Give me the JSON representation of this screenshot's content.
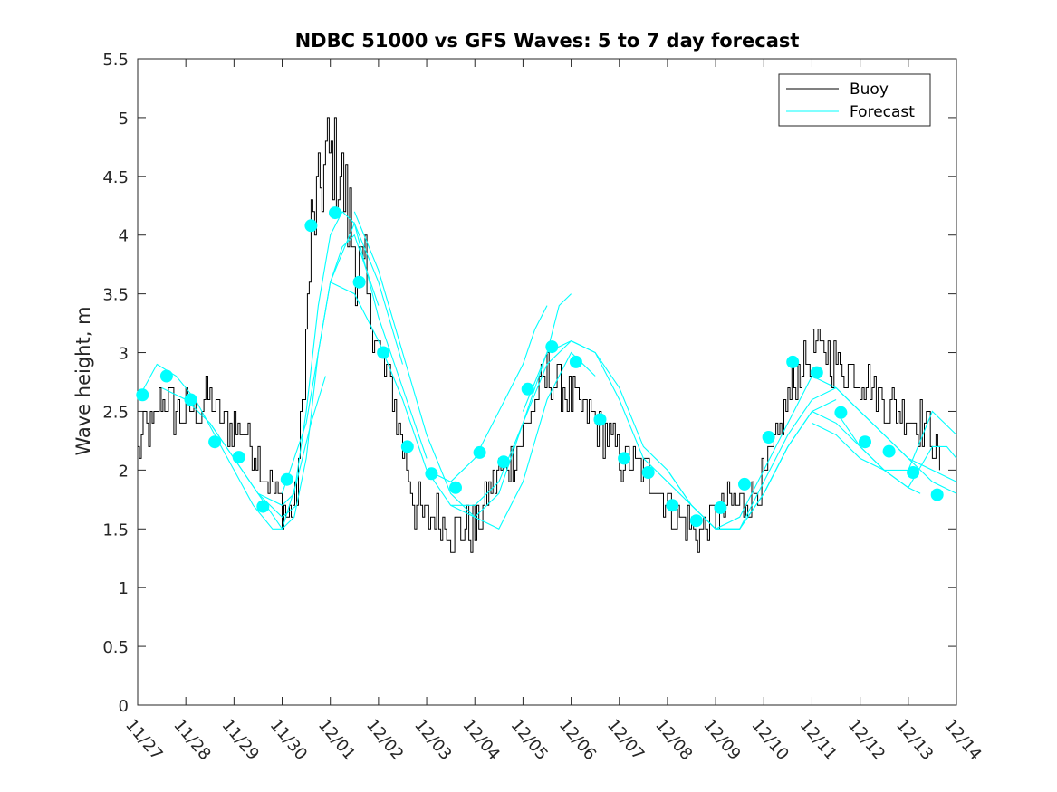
{
  "chart_data": {
    "type": "line",
    "title": "NDBC 51000 vs GFS Waves: 5 to 7 day forecast",
    "xlabel": "",
    "ylabel": "Wave height, m",
    "xlim": [
      0,
      17
    ],
    "ylim": [
      0,
      5.5
    ],
    "grid": false,
    "legend_position": "top-right",
    "x_tick_labels": [
      "11/27",
      "11/28",
      "11/29",
      "11/30",
      "12/01",
      "12/02",
      "12/03",
      "12/04",
      "12/05",
      "12/06",
      "12/07",
      "12/08",
      "12/09",
      "12/10",
      "12/11",
      "12/12",
      "12/13",
      "12/14"
    ],
    "y_ticks": [
      "0",
      "0.5",
      "1",
      "1.5",
      "2",
      "2.5",
      "3",
      "3.5",
      "4",
      "4.5",
      "5",
      "5.5"
    ],
    "colors": {
      "buoy": "#000000",
      "forecast": "#00FFFF",
      "axes": "#262626"
    },
    "series": [
      {
        "name": "Buoy",
        "x": [
          0,
          0.15,
          0.3,
          0.45,
          0.6,
          0.75,
          1.0,
          1.25,
          1.5,
          1.75,
          2.0,
          2.25,
          2.5,
          2.75,
          3.0,
          3.15,
          3.3,
          3.45,
          3.6,
          3.75,
          3.9,
          4.05,
          4.2,
          4.4,
          4.6,
          4.8,
          5.0,
          5.25,
          5.5,
          5.75,
          6.0,
          6.25,
          6.5,
          6.75,
          7.0,
          7.25,
          7.5,
          7.75,
          8.0,
          8.25,
          8.5,
          8.75,
          9.0,
          9.25,
          9.5,
          9.75,
          10.0,
          10.25,
          10.5,
          10.75,
          11.0,
          11.25,
          11.5,
          11.75,
          12.0,
          12.25,
          12.5,
          12.75,
          13.0,
          13.25,
          13.5,
          13.75,
          14.0,
          14.25,
          14.5,
          14.75,
          15.0,
          15.25,
          15.5,
          15.75,
          16.0,
          16.25,
          16.5,
          16.65
        ],
        "y": [
          2.1,
          2.4,
          2.3,
          2.6,
          2.6,
          2.5,
          2.5,
          2.5,
          2.6,
          2.4,
          2.4,
          2.3,
          2.1,
          1.9,
          1.7,
          1.6,
          1.8,
          2.8,
          4.0,
          4.3,
          4.6,
          4.7,
          4.5,
          4.1,
          3.7,
          3.4,
          3.0,
          2.7,
          2.2,
          1.7,
          1.6,
          1.6,
          1.5,
          1.5,
          1.5,
          1.8,
          2.0,
          2.1,
          2.3,
          2.6,
          2.8,
          2.75,
          2.6,
          2.5,
          2.4,
          2.3,
          2.1,
          2.05,
          2.0,
          1.9,
          1.7,
          1.6,
          1.5,
          1.5,
          1.6,
          1.7,
          1.7,
          1.8,
          1.9,
          2.2,
          2.6,
          2.9,
          3.0,
          3.0,
          2.9,
          2.85,
          2.8,
          2.7,
          2.6,
          2.5,
          2.5,
          2.4,
          2.3,
          2.0
        ]
      },
      {
        "name": "Forecast",
        "segments": [
          {
            "x": [
              0,
              0.4,
              0.8,
              1.2,
              1.6,
              2.0,
              2.4,
              2.8,
              3.0
            ],
            "y": [
              2.6,
              2.9,
              2.8,
              2.6,
              2.3,
              2.0,
              1.7,
              1.5,
              1.5
            ]
          },
          {
            "x": [
              0.5,
              1.0,
              1.5,
              2.0,
              2.5,
              3.0,
              3.3
            ],
            "y": [
              2.7,
              2.6,
              2.4,
              2.1,
              1.8,
              1.6,
              1.7
            ]
          },
          {
            "x": [
              1.5,
              2.0,
              2.5,
              3.0,
              3.25,
              3.5,
              3.75,
              4.0,
              4.25,
              4.5,
              5.0
            ],
            "y": [
              2.4,
              2.1,
              1.8,
              1.5,
              1.6,
              2.1,
              3.0,
              3.6,
              3.9,
              4.0,
              3.4
            ]
          },
          {
            "x": [
              2.5,
              3.0,
              3.25,
              3.5,
              3.75,
              4.0,
              4.25,
              4.5,
              5.0,
              5.5
            ],
            "y": [
              1.8,
              1.7,
              1.8,
              2.5,
              3.4,
              4.0,
              4.2,
              4.1,
              3.6,
              2.9
            ]
          },
          {
            "x": [
              3.0,
              3.5,
              4.0,
              4.5,
              5.0,
              5.5,
              6.0
            ],
            "y": [
              1.8,
              2.4,
              3.6,
              4.1,
              3.3,
              2.7,
              2.1
            ]
          },
          {
            "x": [
              3.0,
              3.3,
              3.6,
              3.9
            ],
            "y": [
              1.5,
              1.9,
              2.4,
              2.8
            ]
          },
          {
            "x": [
              4.0,
              4.5,
              5.0,
              5.5,
              6.0,
              6.5,
              7.0,
              7.5,
              8.0,
              8.5,
              9.0
            ],
            "y": [
              3.6,
              3.5,
              3.1,
              2.6,
              2.0,
              1.7,
              1.6,
              1.8,
              2.4,
              2.9,
              3.1
            ]
          },
          {
            "x": [
              4.5,
              5.0,
              5.5,
              6.0,
              6.5,
              7.0,
              7.5,
              8.0,
              8.5,
              9.0,
              9.5
            ],
            "y": [
              4.2,
              3.7,
              3.0,
              2.3,
              1.8,
              1.6,
              1.5,
              1.9,
              2.6,
              3.0,
              2.8
            ]
          },
          {
            "x": [
              6.0,
              6.5,
              7.0,
              7.5,
              8.0,
              8.25,
              8.5
            ],
            "y": [
              2.0,
              1.9,
              2.1,
              2.5,
              2.9,
              3.2,
              3.4
            ]
          },
          {
            "x": [
              6.5,
              7.0,
              7.5,
              8.0,
              8.5,
              8.75,
              9.0
            ],
            "y": [
              1.7,
              1.7,
              1.9,
              2.4,
              3.0,
              3.4,
              3.5
            ]
          },
          {
            "x": [
              8.0,
              8.5,
              9.0,
              9.5,
              10.0,
              10.5,
              11.0,
              11.5,
              12.0,
              12.5,
              13.0,
              13.5
            ],
            "y": [
              2.5,
              3.0,
              3.1,
              3.0,
              2.7,
              2.2,
              2.0,
              1.7,
              1.5,
              1.5,
              1.8,
              2.2
            ]
          },
          {
            "x": [
              9.0,
              9.5,
              10.0,
              10.5,
              11.0,
              11.5,
              12.0,
              12.5,
              13.0,
              13.5,
              14.0,
              14.5
            ],
            "y": [
              3.1,
              3.0,
              2.6,
              2.1,
              1.9,
              1.7,
              1.5,
              1.5,
              1.8,
              2.2,
              2.5,
              2.6
            ]
          },
          {
            "x": [
              11.0,
              11.5,
              12.0,
              12.5,
              13.0,
              13.5,
              14.0,
              14.5,
              15.0,
              15.5,
              16.0,
              16.5,
              17.0
            ],
            "y": [
              2.0,
              1.7,
              1.5,
              1.5,
              1.9,
              2.3,
              2.6,
              2.7,
              2.5,
              2.3,
              2.1,
              2.0,
              1.9
            ]
          },
          {
            "x": [
              12.0,
              12.5,
              13.0,
              13.5,
              14.0,
              14.5,
              15.0,
              15.5,
              16.0,
              16.5,
              17.0
            ],
            "y": [
              1.5,
              1.6,
              2.0,
              2.4,
              2.8,
              2.7,
              2.5,
              2.3,
              2.1,
              1.9,
              1.8
            ]
          },
          {
            "x": [
              13.0,
              13.5,
              14.0,
              14.5,
              15.0,
              15.5,
              16.0,
              16.5,
              16.8,
              17.0
            ],
            "y": [
              1.8,
              2.2,
              2.5,
              2.4,
              2.2,
              2.0,
              1.85,
              2.2,
              2.2,
              2.1
            ]
          },
          {
            "x": [
              14.0,
              14.5,
              15.0,
              15.5,
              16.0,
              16.5,
              16.75,
              17.0
            ],
            "y": [
              2.4,
              2.3,
              2.1,
              2.0,
              2.0,
              2.5,
              2.4,
              2.3
            ]
          },
          {
            "x": [
              14.5,
              15.0,
              15.5,
              16.0,
              16.25
            ],
            "y": [
              2.5,
              2.2,
              2.0,
              1.85,
              1.8
            ]
          }
        ],
        "markers": {
          "x": [
            0.1,
            0.6,
            1.1,
            1.6,
            2.1,
            2.6,
            3.1,
            3.6,
            4.1,
            4.6,
            5.1,
            5.6,
            6.1,
            6.6,
            7.1,
            7.6,
            8.1,
            8.6,
            9.1,
            9.6,
            10.1,
            10.6,
            11.1,
            11.6,
            12.1,
            12.6,
            13.1,
            13.6,
            14.1,
            14.6,
            15.1,
            15.6,
            16.1,
            16.6
          ],
          "y": [
            2.64,
            2.8,
            2.6,
            2.24,
            2.11,
            1.69,
            1.92,
            4.08,
            4.19,
            3.6,
            3.0,
            2.2,
            1.97,
            1.85,
            2.15,
            2.07,
            2.69,
            3.05,
            2.92,
            2.43,
            2.1,
            1.98,
            1.7,
            1.57,
            1.68,
            1.88,
            2.28,
            2.92,
            2.83,
            2.49,
            2.24,
            2.16,
            1.98,
            1.79
          ]
        }
      }
    ]
  }
}
